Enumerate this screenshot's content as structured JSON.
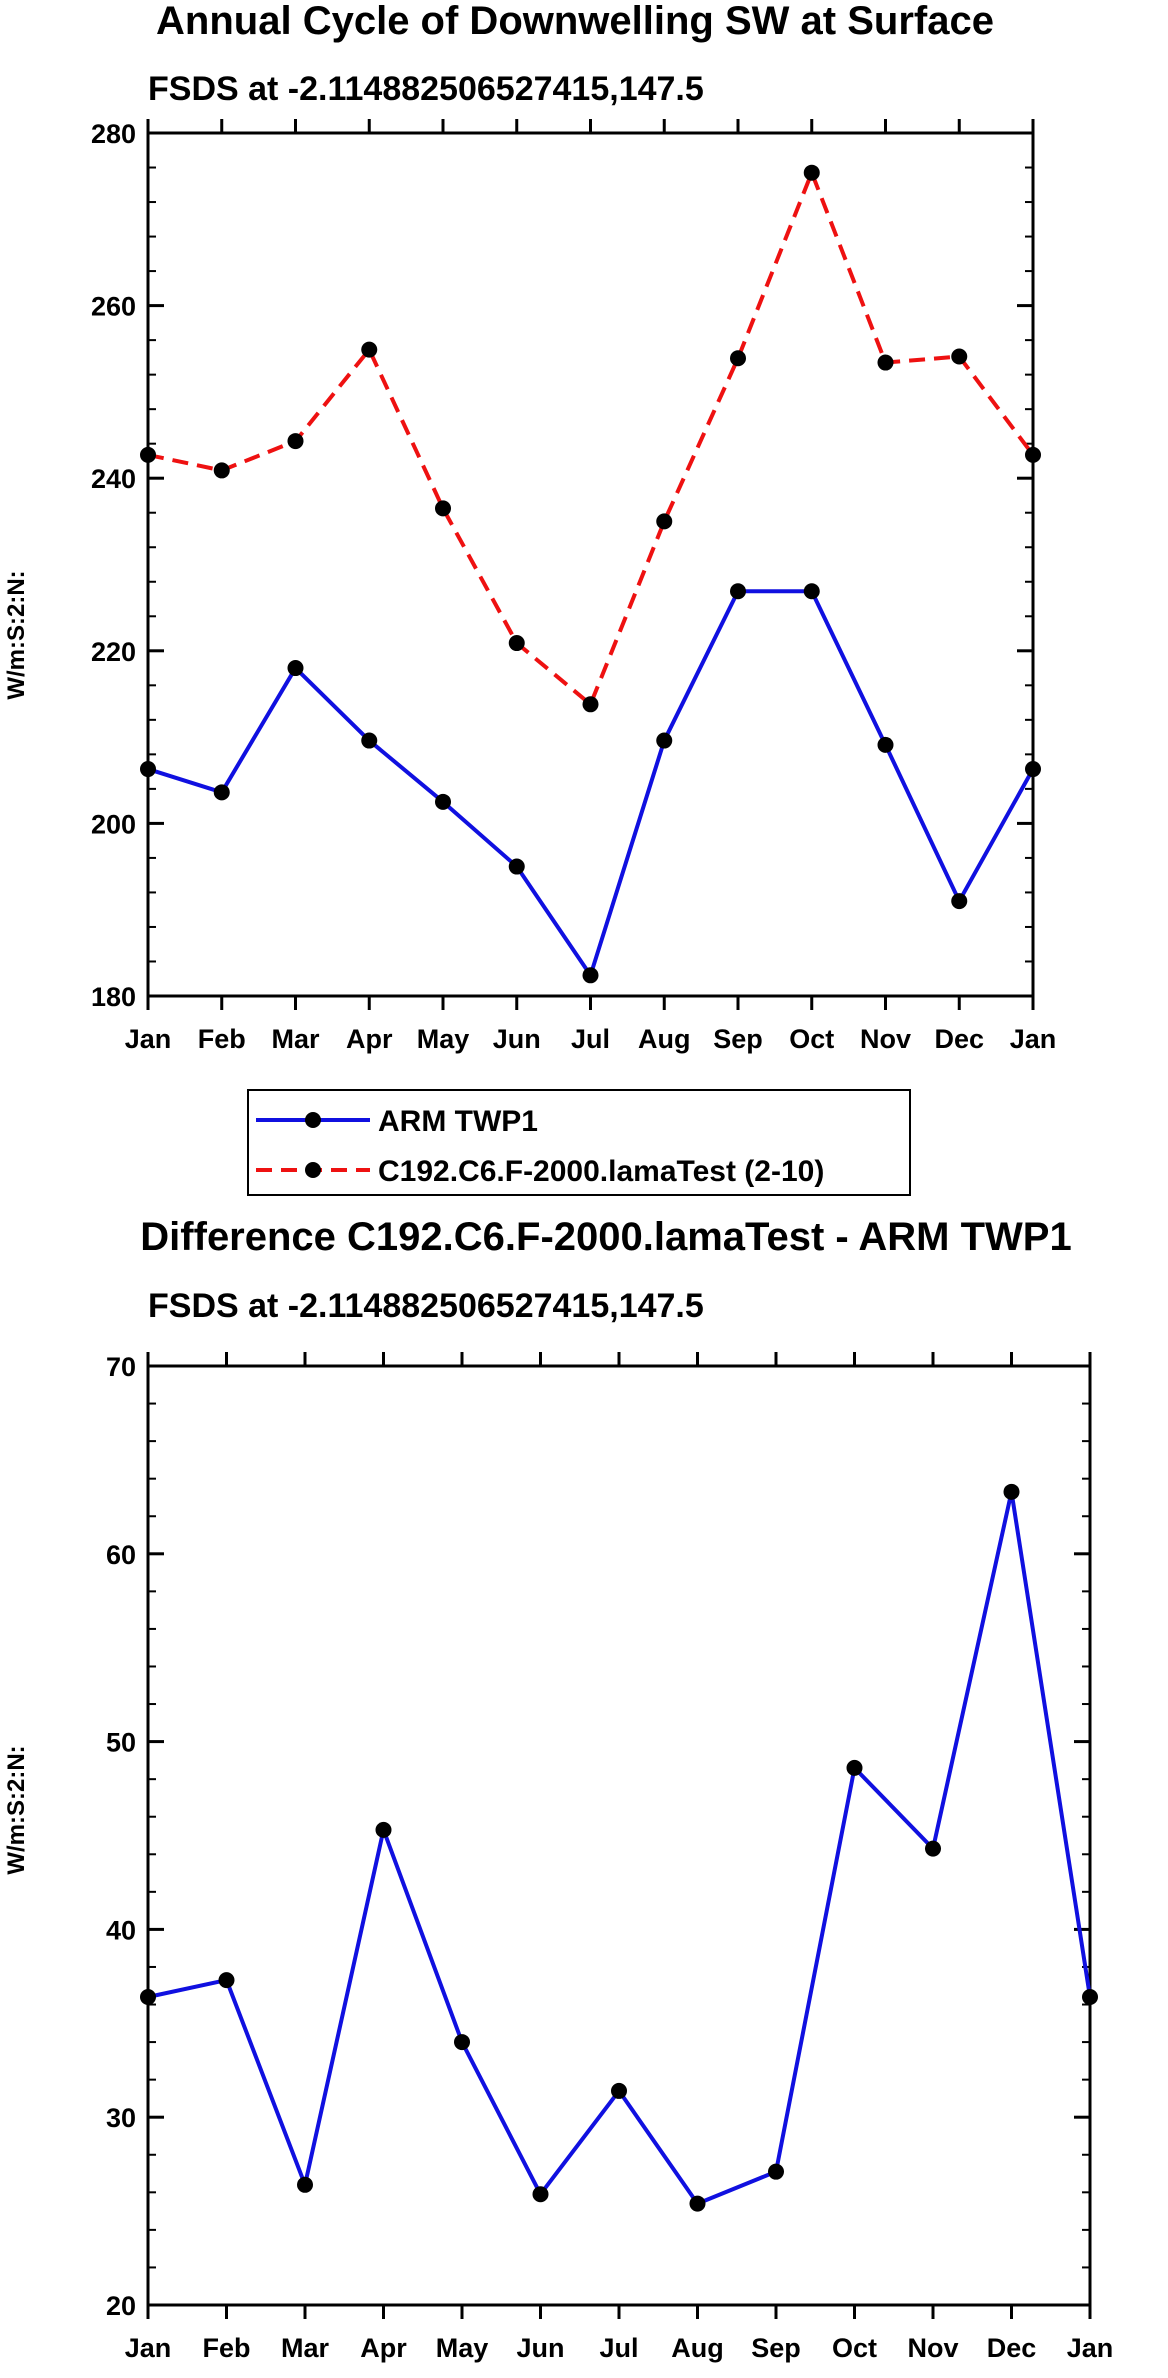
{
  "chart_data": [
    {
      "type": "line",
      "title": "Annual Cycle of Downwelling SW at Surface",
      "subtitle": "FSDS at -2.114882506527415,147.5",
      "xlabel": "",
      "ylabel": "W/m:S:2:N:",
      "categories": [
        "Jan",
        "Feb",
        "Mar",
        "Apr",
        "May",
        "Jun",
        "Jul",
        "Aug",
        "Sep",
        "Oct",
        "Nov",
        "Dec",
        "Jan"
      ],
      "ylim": [
        180,
        280
      ],
      "yticks": [
        180,
        200,
        220,
        240,
        260,
        280
      ],
      "series": [
        {
          "name": "ARM TWP1",
          "color": "#1010e0",
          "dash": "solid",
          "values": [
            206.3,
            203.6,
            218.0,
            209.6,
            202.5,
            195.0,
            182.4,
            209.6,
            226.9,
            226.9,
            209.1,
            191.0,
            206.3
          ]
        },
        {
          "name": "C192.C6.F-2000.lamaTest (2-10)",
          "color": "#ee1111",
          "dash": "dashed",
          "values": [
            242.7,
            240.9,
            244.3,
            254.9,
            236.5,
            220.9,
            213.8,
            235.0,
            253.9,
            275.4,
            253.4,
            254.1,
            242.7
          ]
        }
      ],
      "legend": "below"
    },
    {
      "type": "line",
      "title": "Difference C192.C6.F-2000.lamaTest - ARM TWP1",
      "subtitle": "FSDS at -2.114882506527415,147.5",
      "xlabel": "",
      "ylabel": "W/m:S:2:N:",
      "categories": [
        "Jan",
        "Feb",
        "Mar",
        "Apr",
        "May",
        "Jun",
        "Jul",
        "Aug",
        "Sep",
        "Oct",
        "Nov",
        "Dec",
        "Jan"
      ],
      "ylim": [
        20,
        70
      ],
      "yticks": [
        20,
        30,
        40,
        50,
        60,
        70
      ],
      "series": [
        {
          "name": "Difference",
          "color": "#1010e0",
          "dash": "solid",
          "values": [
            36.4,
            37.3,
            26.4,
            45.3,
            34.0,
            25.9,
            31.4,
            25.4,
            27.1,
            48.6,
            44.3,
            63.3,
            36.4
          ]
        }
      ]
    }
  ]
}
